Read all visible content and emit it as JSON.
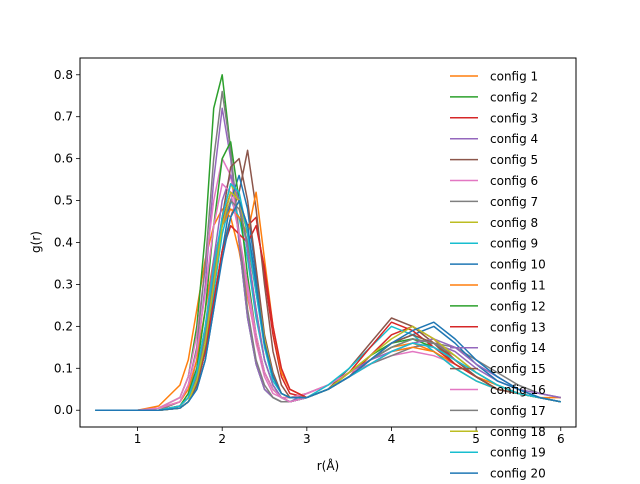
{
  "chart_data": {
    "type": "line",
    "title": "",
    "xlabel": "r(Å)",
    "ylabel": "g(r)",
    "xlim": [
      0.32,
      6.18
    ],
    "ylim": [
      -0.04,
      0.84
    ],
    "x_ticks": [
      1,
      2,
      3,
      4,
      5,
      6
    ],
    "y_ticks": [
      0.0,
      0.1,
      0.2,
      0.3,
      0.4,
      0.5,
      0.6,
      0.7,
      0.8
    ],
    "x_tick_labels": [
      "1",
      "2",
      "3",
      "4",
      "5",
      "6"
    ],
    "y_tick_labels": [
      "0.0",
      "0.1",
      "0.2",
      "0.3",
      "0.4",
      "0.5",
      "0.6",
      "0.7",
      "0.8"
    ],
    "grid": false,
    "legend_position": "top-right (overflowing plot area)",
    "x_grid": [
      0.5,
      0.75,
      1.0,
      1.25,
      1.5,
      1.6,
      1.7,
      1.8,
      1.9,
      2.0,
      2.1,
      2.2,
      2.3,
      2.4,
      2.5,
      2.6,
      2.7,
      2.8,
      3.0,
      3.25,
      3.5,
      3.75,
      4.0,
      4.25,
      4.5,
      4.75,
      5.0,
      5.25,
      5.5,
      5.75,
      6.0
    ],
    "series": [
      {
        "name": "config 1",
        "color": "#ff7f0e",
        "values": [
          0,
          0,
          0,
          0.01,
          0.06,
          0.12,
          0.24,
          0.36,
          0.44,
          0.48,
          0.46,
          0.38,
          0.27,
          0.17,
          0.09,
          0.05,
          0.03,
          0.03,
          0.04,
          0.06,
          0.09,
          0.12,
          0.15,
          0.16,
          0.14,
          0.1,
          0.07,
          0.05,
          0.04,
          0.03,
          0.03
        ]
      },
      {
        "name": "config 2",
        "color": "#2ca02c",
        "values": [
          0,
          0,
          0,
          0.005,
          0.03,
          0.08,
          0.2,
          0.42,
          0.72,
          0.8,
          0.62,
          0.4,
          0.22,
          0.11,
          0.05,
          0.03,
          0.02,
          0.02,
          0.03,
          0.05,
          0.08,
          0.12,
          0.15,
          0.17,
          0.16,
          0.12,
          0.08,
          0.05,
          0.04,
          0.03,
          0.02
        ]
      },
      {
        "name": "config 3",
        "color": "#d62728",
        "values": [
          0,
          0,
          0,
          0,
          0.01,
          0.03,
          0.08,
          0.18,
          0.32,
          0.45,
          0.52,
          0.5,
          0.44,
          0.46,
          0.32,
          0.18,
          0.08,
          0.04,
          0.03,
          0.05,
          0.08,
          0.13,
          0.18,
          0.2,
          0.17,
          0.12,
          0.08,
          0.05,
          0.04,
          0.03,
          0.02
        ]
      },
      {
        "name": "config 4",
        "color": "#9467bd",
        "values": [
          0,
          0,
          0,
          0,
          0.01,
          0.04,
          0.12,
          0.3,
          0.55,
          0.72,
          0.6,
          0.4,
          0.22,
          0.11,
          0.05,
          0.03,
          0.02,
          0.02,
          0.04,
          0.06,
          0.09,
          0.12,
          0.14,
          0.15,
          0.16,
          0.14,
          0.1,
          0.07,
          0.05,
          0.03,
          0.02
        ]
      },
      {
        "name": "config 5",
        "color": "#8c564b",
        "values": [
          0,
          0,
          0,
          0,
          0.005,
          0.02,
          0.06,
          0.14,
          0.26,
          0.38,
          0.46,
          0.52,
          0.62,
          0.48,
          0.3,
          0.14,
          0.06,
          0.03,
          0.03,
          0.05,
          0.1,
          0.16,
          0.22,
          0.2,
          0.16,
          0.11,
          0.08,
          0.05,
          0.04,
          0.03,
          0.02
        ]
      },
      {
        "name": "config 6",
        "color": "#e377c2",
        "values": [
          0,
          0,
          0,
          0.005,
          0.03,
          0.08,
          0.18,
          0.34,
          0.5,
          0.6,
          0.56,
          0.42,
          0.28,
          0.16,
          0.08,
          0.04,
          0.03,
          0.03,
          0.04,
          0.06,
          0.09,
          0.11,
          0.13,
          0.14,
          0.13,
          0.11,
          0.08,
          0.06,
          0.04,
          0.03,
          0.02
        ]
      },
      {
        "name": "config 7",
        "color": "#7f7f7f",
        "values": [
          0,
          0,
          0,
          0,
          0.02,
          0.06,
          0.15,
          0.35,
          0.6,
          0.76,
          0.62,
          0.42,
          0.24,
          0.12,
          0.06,
          0.03,
          0.02,
          0.02,
          0.03,
          0.05,
          0.08,
          0.11,
          0.13,
          0.15,
          0.16,
          0.15,
          0.12,
          0.09,
          0.06,
          0.04,
          0.03
        ]
      },
      {
        "name": "config 8",
        "color": "#bcbd22",
        "values": [
          0,
          0,
          0,
          0,
          0.01,
          0.03,
          0.08,
          0.18,
          0.32,
          0.46,
          0.54,
          0.5,
          0.38,
          0.24,
          0.12,
          0.06,
          0.03,
          0.02,
          0.03,
          0.05,
          0.08,
          0.12,
          0.16,
          0.18,
          0.16,
          0.12,
          0.08,
          0.05,
          0.04,
          0.03,
          0.02
        ]
      },
      {
        "name": "config 9",
        "color": "#17becf",
        "values": [
          0,
          0,
          0,
          0,
          0.005,
          0.02,
          0.06,
          0.14,
          0.28,
          0.42,
          0.5,
          0.46,
          0.36,
          0.22,
          0.12,
          0.06,
          0.03,
          0.02,
          0.03,
          0.06,
          0.1,
          0.15,
          0.2,
          0.18,
          0.14,
          0.1,
          0.07,
          0.05,
          0.04,
          0.03,
          0.02
        ]
      },
      {
        "name": "config 10",
        "color": "#1f77b4",
        "values": [
          0,
          0,
          0,
          0,
          0.005,
          0.02,
          0.05,
          0.12,
          0.24,
          0.38,
          0.5,
          0.56,
          0.48,
          0.32,
          0.16,
          0.08,
          0.04,
          0.03,
          0.03,
          0.05,
          0.08,
          0.12,
          0.16,
          0.18,
          0.2,
          0.16,
          0.11,
          0.07,
          0.05,
          0.03,
          0.02
        ]
      },
      {
        "name": "config 11",
        "color": "#ff7f0e",
        "values": [
          0,
          0,
          0,
          0.005,
          0.02,
          0.05,
          0.12,
          0.24,
          0.36,
          0.44,
          0.48,
          0.46,
          0.42,
          0.52,
          0.36,
          0.2,
          0.09,
          0.05,
          0.03,
          0.05,
          0.08,
          0.11,
          0.14,
          0.15,
          0.14,
          0.11,
          0.08,
          0.06,
          0.04,
          0.03,
          0.02
        ]
      },
      {
        "name": "config 12",
        "color": "#2ca02c",
        "values": [
          0,
          0,
          0,
          0,
          0.01,
          0.04,
          0.1,
          0.24,
          0.44,
          0.6,
          0.64,
          0.5,
          0.32,
          0.18,
          0.09,
          0.05,
          0.03,
          0.02,
          0.03,
          0.05,
          0.09,
          0.13,
          0.16,
          0.17,
          0.15,
          0.12,
          0.08,
          0.05,
          0.04,
          0.03,
          0.02
        ]
      },
      {
        "name": "config 13",
        "color": "#d62728",
        "values": [
          0,
          0,
          0,
          0,
          0.005,
          0.02,
          0.06,
          0.14,
          0.26,
          0.38,
          0.44,
          0.42,
          0.4,
          0.44,
          0.34,
          0.2,
          0.1,
          0.05,
          0.03,
          0.05,
          0.09,
          0.15,
          0.21,
          0.19,
          0.15,
          0.11,
          0.08,
          0.05,
          0.04,
          0.03,
          0.02
        ]
      },
      {
        "name": "config 14",
        "color": "#9467bd",
        "values": [
          0,
          0,
          0,
          0,
          0.01,
          0.03,
          0.09,
          0.2,
          0.36,
          0.5,
          0.56,
          0.5,
          0.38,
          0.24,
          0.12,
          0.06,
          0.03,
          0.02,
          0.03,
          0.05,
          0.08,
          0.11,
          0.14,
          0.16,
          0.17,
          0.15,
          0.11,
          0.08,
          0.05,
          0.04,
          0.03
        ]
      },
      {
        "name": "config 15",
        "color": "#8c564b",
        "values": [
          0,
          0,
          0,
          0,
          0.005,
          0.02,
          0.06,
          0.15,
          0.3,
          0.46,
          0.58,
          0.6,
          0.5,
          0.34,
          0.18,
          0.09,
          0.04,
          0.03,
          0.03,
          0.05,
          0.08,
          0.12,
          0.16,
          0.18,
          0.16,
          0.12,
          0.08,
          0.05,
          0.04,
          0.03,
          0.02
        ]
      },
      {
        "name": "config 16",
        "color": "#e377c2",
        "values": [
          0,
          0,
          0,
          0.005,
          0.02,
          0.06,
          0.14,
          0.28,
          0.44,
          0.54,
          0.52,
          0.42,
          0.3,
          0.18,
          0.09,
          0.05,
          0.03,
          0.02,
          0.03,
          0.05,
          0.08,
          0.11,
          0.14,
          0.16,
          0.15,
          0.12,
          0.09,
          0.06,
          0.04,
          0.03,
          0.02
        ]
      },
      {
        "name": "config 17",
        "color": "#7f7f7f",
        "values": [
          0,
          0,
          0,
          0,
          0.01,
          0.03,
          0.08,
          0.18,
          0.32,
          0.44,
          0.5,
          0.48,
          0.4,
          0.28,
          0.16,
          0.08,
          0.04,
          0.03,
          0.03,
          0.05,
          0.08,
          0.12,
          0.15,
          0.17,
          0.16,
          0.13,
          0.09,
          0.06,
          0.04,
          0.03,
          0.02
        ]
      },
      {
        "name": "config 18",
        "color": "#bcbd22",
        "values": [
          0,
          0,
          0,
          0,
          0.005,
          0.02,
          0.07,
          0.16,
          0.3,
          0.44,
          0.52,
          0.5,
          0.42,
          0.3,
          0.17,
          0.08,
          0.04,
          0.03,
          0.03,
          0.05,
          0.09,
          0.13,
          0.17,
          0.2,
          0.17,
          0.13,
          0.09,
          0.06,
          0.04,
          0.03,
          0.02
        ]
      },
      {
        "name": "config 19",
        "color": "#17becf",
        "values": [
          0,
          0,
          0,
          0,
          0.01,
          0.03,
          0.09,
          0.2,
          0.34,
          0.46,
          0.54,
          0.52,
          0.42,
          0.28,
          0.15,
          0.07,
          0.04,
          0.03,
          0.03,
          0.05,
          0.08,
          0.11,
          0.14,
          0.16,
          0.15,
          0.12,
          0.09,
          0.06,
          0.04,
          0.03,
          0.02
        ]
      },
      {
        "name": "config 20",
        "color": "#1f77b4",
        "values": [
          0,
          0,
          0,
          0,
          0.005,
          0.02,
          0.05,
          0.12,
          0.24,
          0.36,
          0.46,
          0.5,
          0.44,
          0.3,
          0.16,
          0.08,
          0.04,
          0.03,
          0.03,
          0.05,
          0.08,
          0.12,
          0.16,
          0.19,
          0.21,
          0.17,
          0.12,
          0.08,
          0.05,
          0.03,
          0.02
        ]
      }
    ]
  }
}
